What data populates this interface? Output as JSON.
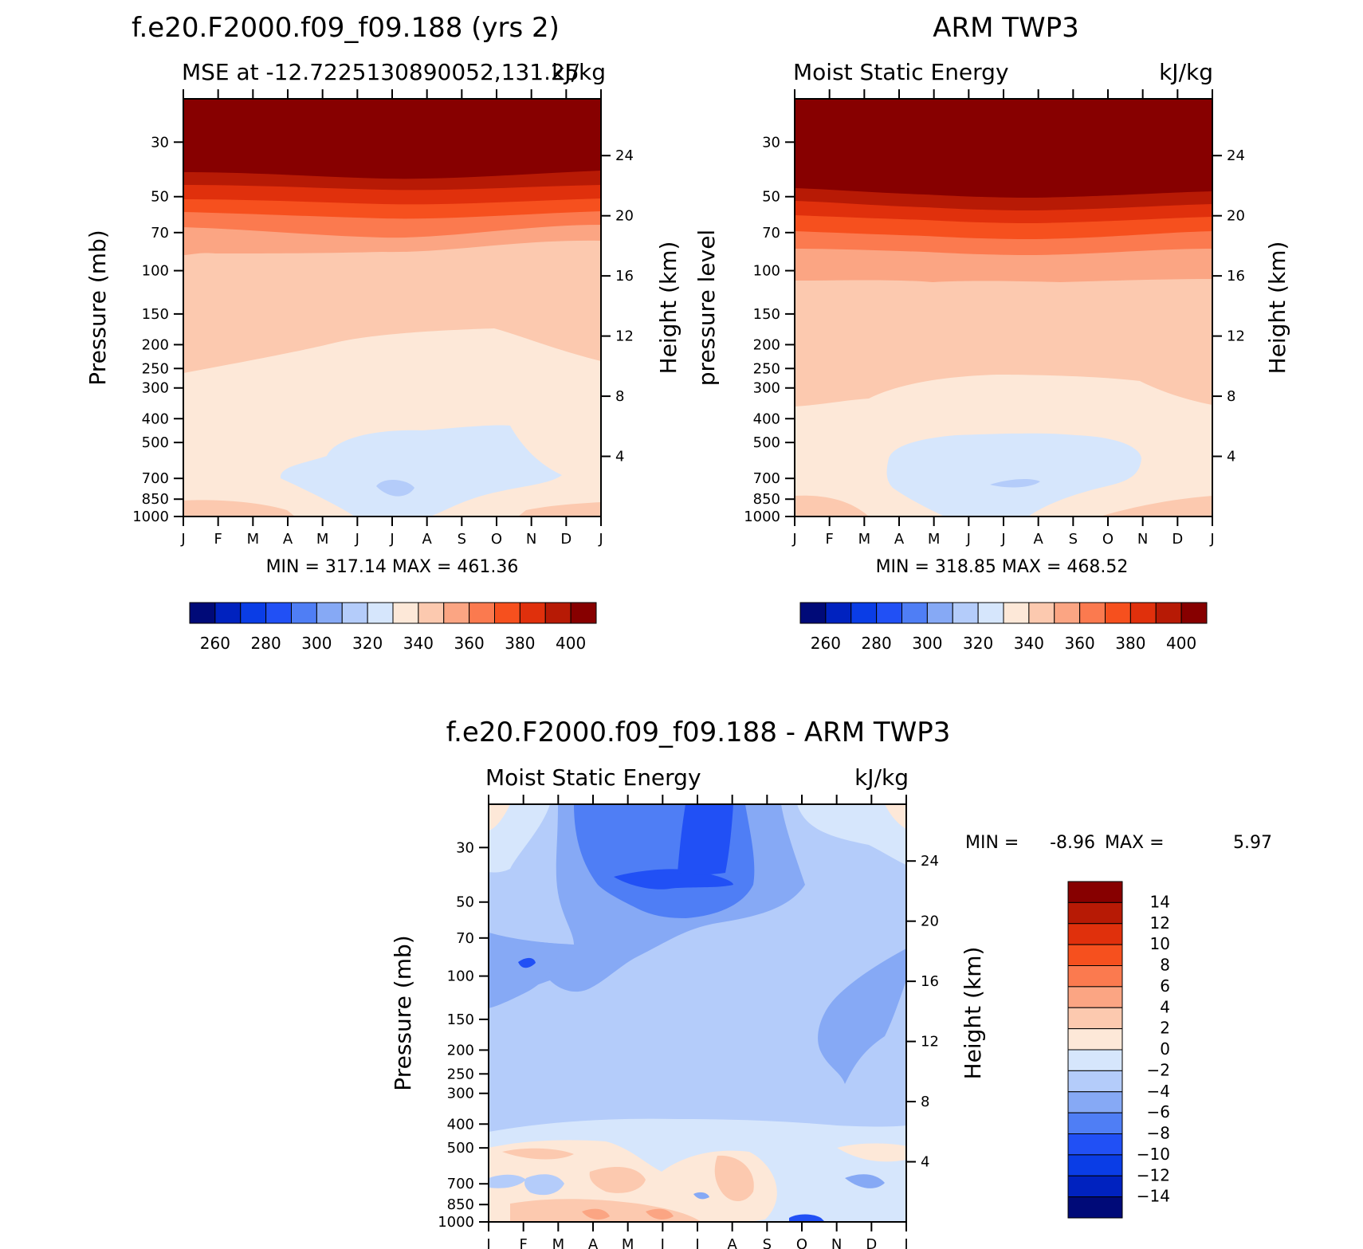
{
  "chart_data": [
    {
      "type": "heatmap",
      "panel": "model",
      "title": "f.e20.F2000.f09_f09.188 (yrs 2)",
      "subtitle_left": "MSE at -12.7225130890052,131.25",
      "subtitle_right": "kJ/kg",
      "ylabel": "Pressure (mb)",
      "y2label": "Height (km)",
      "months": [
        "J",
        "F",
        "M",
        "A",
        "M",
        "J",
        "J",
        "A",
        "S",
        "O",
        "N",
        "D",
        "J"
      ],
      "pressure_ticks": [
        30,
        50,
        70,
        100,
        150,
        200,
        250,
        300,
        400,
        500,
        700,
        850,
        1000
      ],
      "height_ticks": [
        24,
        20,
        16,
        12,
        8,
        4
      ],
      "stats": "MIN =  317.14  MAX =  461.36",
      "contour_levels": [
        260,
        270,
        280,
        290,
        300,
        310,
        320,
        330,
        340,
        350,
        360,
        370,
        380,
        390,
        400
      ],
      "colorbar_labels": [
        "260",
        "280",
        "300",
        "320",
        "340",
        "360",
        "380",
        "400"
      ],
      "colorbar_colors": [
        "#000a78",
        "#0022bf",
        "#0a3de6",
        "#2150f5",
        "#4f7ef5",
        "#86a9f5",
        "#b4ccfa",
        "#d6e6fc",
        "#fde8d8",
        "#fcc9af",
        "#fba583",
        "#fb7a4f",
        "#f6501e",
        "#e0300c",
        "#b71a05",
        "#870000"
      ]
    },
    {
      "type": "heatmap",
      "panel": "obs",
      "title": "ARM TWP3",
      "subtitle_left": "Moist Static Energy",
      "subtitle_right": "kJ/kg",
      "ylabel": "pressure level",
      "y2label": "Height (km)",
      "months": [
        "J",
        "F",
        "M",
        "A",
        "M",
        "J",
        "J",
        "A",
        "S",
        "O",
        "N",
        "D",
        "J"
      ],
      "pressure_ticks": [
        30,
        50,
        70,
        100,
        150,
        200,
        250,
        300,
        400,
        500,
        700,
        850,
        1000
      ],
      "height_ticks": [
        24,
        20,
        16,
        12,
        8,
        4
      ],
      "stats": "MIN =  318.85  MAX =  468.52",
      "colorbar_labels": [
        "260",
        "280",
        "300",
        "320",
        "340",
        "360",
        "380",
        "400"
      ]
    },
    {
      "type": "heatmap",
      "panel": "difference",
      "title": "f.e20.F2000.f09_f09.188 - ARM TWP3",
      "subtitle_left": "Moist Static Energy",
      "subtitle_right": "kJ/kg",
      "ylabel": "Pressure (mb)",
      "y2label": "Height (km)",
      "months": [
        "J",
        "F",
        "M",
        "A",
        "M",
        "J",
        "J",
        "A",
        "S",
        "O",
        "N",
        "D",
        "J"
      ],
      "pressure_ticks": [
        30,
        50,
        70,
        100,
        150,
        200,
        250,
        300,
        400,
        500,
        700,
        850,
        1000
      ],
      "height_ticks": [
        24,
        20,
        16,
        12,
        8,
        4
      ],
      "stats_min_label": "MIN =",
      "stats_min": "-8.96",
      "stats_max_label": "MAX =",
      "stats_max": "5.97",
      "contour_levels": [
        -14,
        -12,
        -10,
        -8,
        -6,
        -4,
        -2,
        0,
        2,
        4,
        6,
        8,
        10,
        12,
        14
      ],
      "colorbar_labels": [
        "14",
        "12",
        "10",
        "8",
        "6",
        "4",
        "2",
        "0",
        "-2",
        "-4",
        "-6",
        "-8",
        "-10",
        "-12",
        "-14"
      ],
      "colorbar_colors": [
        "#870000",
        "#b71a05",
        "#e0300c",
        "#f6501e",
        "#fb7a4f",
        "#fba583",
        "#fcc9af",
        "#fde8d8",
        "#d6e6fc",
        "#b4ccfa",
        "#86a9f5",
        "#4f7ef5",
        "#2150f5",
        "#0a3de6",
        "#0022bf",
        "#000a78"
      ]
    }
  ]
}
